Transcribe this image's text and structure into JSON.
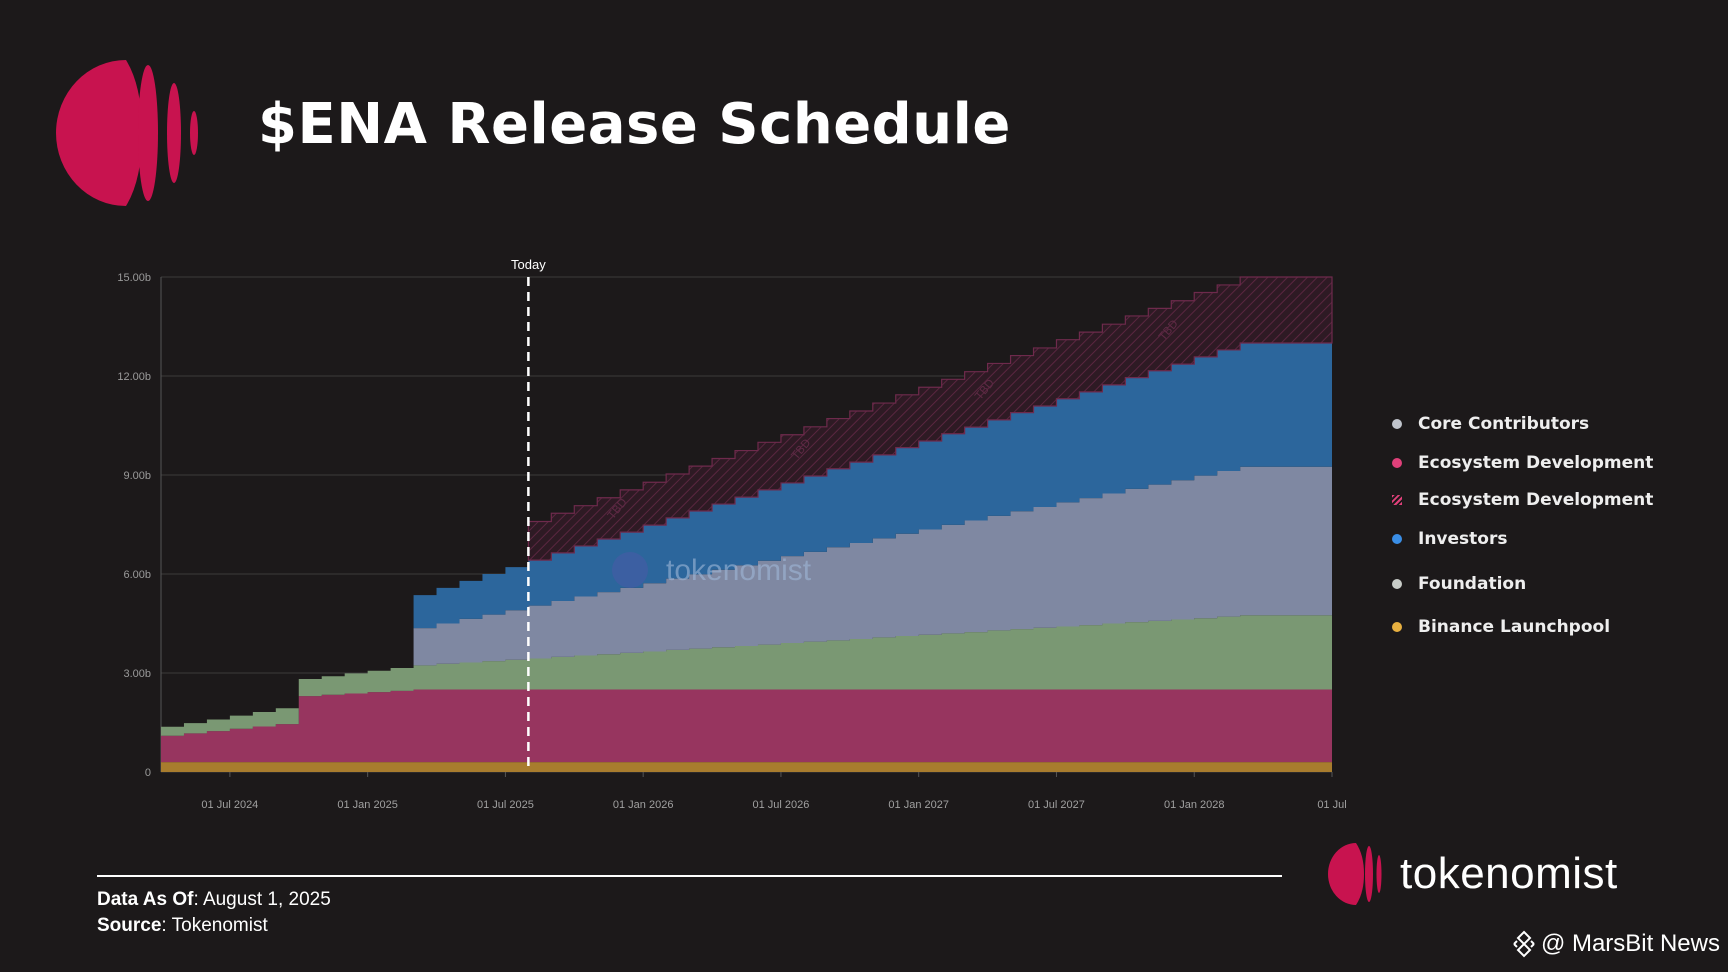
{
  "header": {
    "title": "$ENA Release Schedule",
    "brand_color": "#c8134f"
  },
  "chart_data": {
    "type": "area",
    "stacked": true,
    "step": true,
    "title": "",
    "xlabel": "",
    "ylabel": "",
    "ylim": [
      0,
      15
    ],
    "y_unit": "b",
    "y_ticks": [
      {
        "value": 0,
        "label": "0"
      },
      {
        "value": 3,
        "label": "3.00b"
      },
      {
        "value": 6,
        "label": "6.00b"
      },
      {
        "value": 9,
        "label": "9.00b"
      },
      {
        "value": 12,
        "label": "12.00b"
      },
      {
        "value": 15,
        "label": "15.00b"
      }
    ],
    "x_range": [
      "2024-04",
      "2028-07"
    ],
    "x_ticks": [
      {
        "date": "2024-07",
        "label": "01 Jul 2024"
      },
      {
        "date": "2025-01",
        "label": "01 Jan 2025"
      },
      {
        "date": "2025-07",
        "label": "01 Jul 2025"
      },
      {
        "date": "2026-01",
        "label": "01 Jan 2026"
      },
      {
        "date": "2026-07",
        "label": "01 Jul 2026"
      },
      {
        "date": "2027-01",
        "label": "01 Jan 2027"
      },
      {
        "date": "2027-07",
        "label": "01 Jul 2027"
      },
      {
        "date": "2028-01",
        "label": "01 Jan 2028"
      },
      {
        "date": "2028-07",
        "label": "01 Jul"
      }
    ],
    "grid": true,
    "today": {
      "date": "2025-08",
      "label": "Today"
    },
    "watermark": "tokenomist",
    "tbd_label": "TBD",
    "legend_position": "right",
    "dates": [
      "2024-04",
      "2024-05",
      "2024-06",
      "2024-07",
      "2024-08",
      "2024-09",
      "2024-10",
      "2024-11",
      "2024-12",
      "2025-01",
      "2025-02",
      "2025-03",
      "2025-04",
      "2025-05",
      "2025-06",
      "2025-07",
      "2025-08",
      "2025-09",
      "2025-10",
      "2025-11",
      "2025-12",
      "2026-01",
      "2026-02",
      "2026-03",
      "2026-04",
      "2026-05",
      "2026-06",
      "2026-07",
      "2026-08",
      "2026-09",
      "2026-10",
      "2026-11",
      "2026-12",
      "2027-01",
      "2027-02",
      "2027-03",
      "2027-04",
      "2027-05",
      "2027-06",
      "2027-07",
      "2027-08",
      "2027-09",
      "2027-10",
      "2027-11",
      "2027-12",
      "2028-01",
      "2028-02",
      "2028-03",
      "2028-04",
      "2028-05",
      "2028-06"
    ],
    "series": [
      {
        "name": "Binance Launchpool",
        "color": "#a87c2e",
        "legend_color": "#e8b040",
        "values": [
          0.3,
          0.3,
          0.3,
          0.3,
          0.3,
          0.3,
          0.3,
          0.3,
          0.3,
          0.3,
          0.3,
          0.3,
          0.3,
          0.3,
          0.3,
          0.3,
          0.3,
          0.3,
          0.3,
          0.3,
          0.3,
          0.3,
          0.3,
          0.3,
          0.3,
          0.3,
          0.3,
          0.3,
          0.3,
          0.3,
          0.3,
          0.3,
          0.3,
          0.3,
          0.3,
          0.3,
          0.3,
          0.3,
          0.3,
          0.3,
          0.3,
          0.3,
          0.3,
          0.3,
          0.3,
          0.3,
          0.3,
          0.3,
          0.3,
          0.3,
          0.3
        ]
      },
      {
        "name": "Ecosystem Development",
        "color": "#97355f",
        "legend_color": "#e0407a",
        "values": [
          0.8,
          0.87,
          0.94,
          1.01,
          1.08,
          1.15,
          2.0,
          2.04,
          2.08,
          2.12,
          2.16,
          2.2,
          2.2,
          2.2,
          2.2,
          2.2,
          2.2,
          2.2,
          2.2,
          2.2,
          2.2,
          2.2,
          2.2,
          2.2,
          2.2,
          2.2,
          2.2,
          2.2,
          2.2,
          2.2,
          2.2,
          2.2,
          2.2,
          2.2,
          2.2,
          2.2,
          2.2,
          2.2,
          2.2,
          2.2,
          2.2,
          2.2,
          2.2,
          2.2,
          2.2,
          2.2,
          2.2,
          2.2,
          2.2,
          2.2,
          2.2
        ]
      },
      {
        "name": "Foundation",
        "color": "#7a9873",
        "legend_color": "#c8ccc8",
        "values": [
          0.27,
          0.31,
          0.35,
          0.4,
          0.44,
          0.48,
          0.52,
          0.56,
          0.61,
          0.65,
          0.69,
          0.73,
          0.78,
          0.82,
          0.86,
          0.9,
          0.94,
          0.99,
          1.03,
          1.07,
          1.11,
          1.15,
          1.2,
          1.24,
          1.28,
          1.32,
          1.36,
          1.41,
          1.45,
          1.49,
          1.53,
          1.58,
          1.62,
          1.66,
          1.7,
          1.74,
          1.79,
          1.83,
          1.87,
          1.91,
          1.95,
          2.0,
          2.04,
          2.08,
          2.12,
          2.16,
          2.21,
          2.25,
          2.25,
          2.25,
          2.25
        ]
      },
      {
        "name": "Core Contributors",
        "color": "#7f88a2",
        "legend_color": "#c0c4cc",
        "values": [
          0,
          0,
          0,
          0,
          0,
          0,
          0,
          0,
          0,
          0,
          0,
          1.13,
          1.22,
          1.32,
          1.41,
          1.5,
          1.6,
          1.69,
          1.79,
          1.88,
          1.97,
          2.07,
          2.16,
          2.25,
          2.35,
          2.44,
          2.54,
          2.63,
          2.72,
          2.82,
          2.91,
          3.0,
          3.1,
          3.19,
          3.29,
          3.38,
          3.47,
          3.57,
          3.66,
          3.76,
          3.85,
          3.94,
          4.04,
          4.13,
          4.22,
          4.32,
          4.41,
          4.5,
          4.5,
          4.5,
          4.5
        ]
      },
      {
        "name": "Investors",
        "color": "#2c669c",
        "legend_color": "#3a8ee6",
        "values": [
          0,
          0,
          0,
          0,
          0,
          0,
          0,
          0,
          0,
          0,
          0,
          1.0,
          1.08,
          1.15,
          1.23,
          1.31,
          1.38,
          1.46,
          1.53,
          1.61,
          1.69,
          1.76,
          1.84,
          1.92,
          1.99,
          2.07,
          2.15,
          2.22,
          2.3,
          2.38,
          2.45,
          2.53,
          2.61,
          2.68,
          2.76,
          2.83,
          2.91,
          2.99,
          3.06,
          3.14,
          3.22,
          3.29,
          3.37,
          3.45,
          3.52,
          3.6,
          3.67,
          3.75,
          3.75,
          3.75,
          3.75
        ]
      },
      {
        "name": "Ecosystem Development",
        "hatched": true,
        "color": "#2e1a24",
        "legend_color": "#e0407a",
        "values": [
          0,
          0,
          0,
          0,
          0,
          0,
          0,
          0,
          0,
          0,
          0,
          0,
          0,
          0,
          0,
          0,
          1.17,
          1.2,
          1.22,
          1.25,
          1.28,
          1.3,
          1.33,
          1.36,
          1.38,
          1.41,
          1.44,
          1.46,
          1.49,
          1.52,
          1.55,
          1.57,
          1.6,
          1.63,
          1.65,
          1.68,
          1.71,
          1.73,
          1.76,
          1.79,
          1.81,
          1.84,
          1.87,
          1.89,
          1.92,
          1.95,
          1.97,
          2.0,
          2.0,
          2.0,
          2.0
        ]
      }
    ]
  },
  "legend": {
    "items": [
      {
        "label": "Core Contributors",
        "marker": "dot",
        "color": "#c0c4cc"
      },
      {
        "label": "Ecosystem Development",
        "marker": "dot",
        "color": "#e0407a"
      },
      {
        "label": "Ecosystem Development",
        "marker": "hatch",
        "color": "#e0407a"
      },
      {
        "label": "Investors",
        "marker": "dot",
        "color": "#3a8ee6"
      },
      {
        "label": "Foundation",
        "marker": "dot",
        "color": "#c8ccc8"
      },
      {
        "label": "Binance Launchpool",
        "marker": "dot",
        "color": "#e8b040"
      }
    ]
  },
  "footer": {
    "data_as_of_label": "Data As Of",
    "data_as_of_value": ": August 1, 2025",
    "source_label": "Source",
    "source_value": ": Tokenomist",
    "brand": "tokenomist",
    "credit": "@ MarsBit News"
  }
}
